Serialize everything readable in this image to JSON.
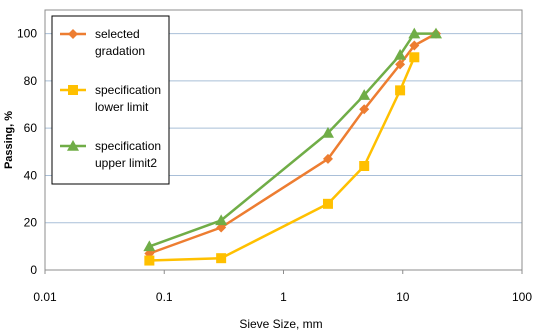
{
  "chart_data": {
    "type": "line",
    "title": "",
    "xlabel": "Sieve Size, mm",
    "ylabel": "Passing, %",
    "x_scale": "log",
    "xlim": [
      0.01,
      100
    ],
    "ylim": [
      0,
      110
    ],
    "x_ticks": [
      0.01,
      0.1,
      1,
      10,
      100
    ],
    "x_tick_labels": [
      "0.01",
      "0.1",
      "1",
      "10",
      "100"
    ],
    "y_ticks": [
      0,
      20,
      40,
      60,
      80,
      100
    ],
    "y_tick_labels": [
      "0",
      "20",
      "40",
      "60",
      "80",
      "100"
    ],
    "grid": "horizontal",
    "legend_position": "top-left",
    "series": [
      {
        "name_lines": [
          "selected",
          "gradation"
        ],
        "color": "#ED7D31",
        "marker": "diamond",
        "x": [
          0.075,
          0.3,
          2.36,
          4.75,
          9.5,
          12.5,
          19
        ],
        "y": [
          7,
          18,
          47,
          68,
          87,
          95,
          100
        ]
      },
      {
        "name_lines": [
          "specification",
          "lower limit"
        ],
        "color": "#FFC000",
        "marker": "square",
        "x": [
          0.075,
          0.3,
          2.36,
          4.75,
          9.5,
          12.5
        ],
        "y": [
          4,
          5,
          28,
          44,
          76,
          90
        ]
      },
      {
        "name_lines": [
          "specification",
          "upper limit2"
        ],
        "color": "#70AD47",
        "marker": "triangle",
        "x": [
          0.075,
          0.3,
          2.36,
          4.75,
          9.5,
          12.5,
          19
        ],
        "y": [
          10,
          21,
          58,
          74,
          91,
          100,
          100
        ]
      }
    ]
  }
}
